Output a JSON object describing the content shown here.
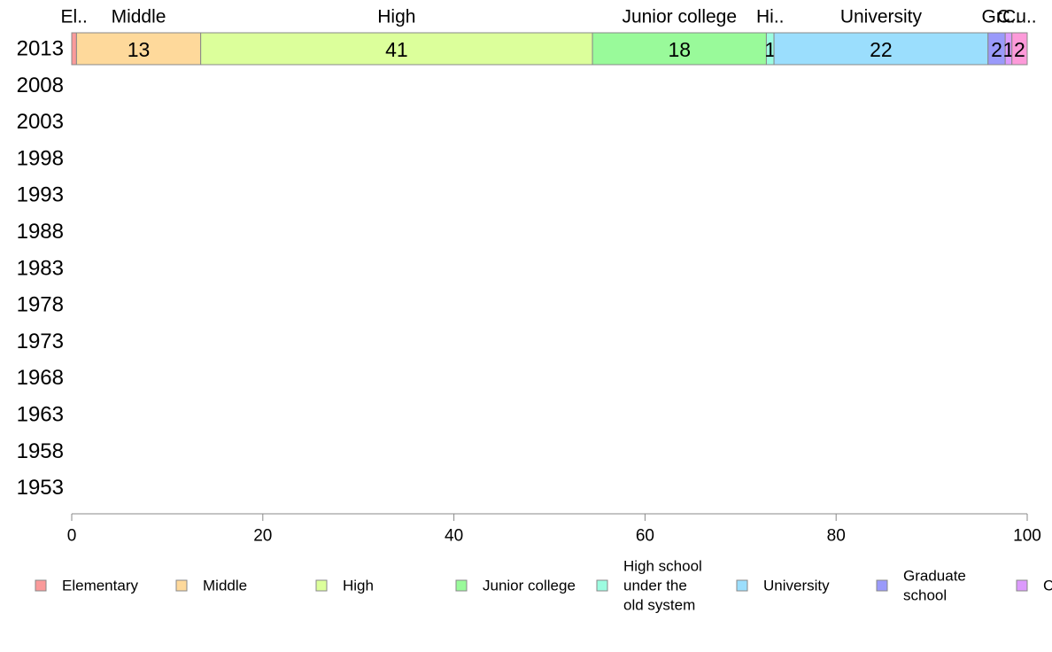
{
  "chart_data": {
    "type": "bar",
    "orientation": "horizontal",
    "stacked": true,
    "title": "",
    "xlabel": "",
    "ylabel": "",
    "xlim": [
      0,
      100
    ],
    "x_ticks": [
      "0",
      "20",
      "40",
      "60",
      "80",
      "100"
    ],
    "categories": [
      "2013",
      "2008",
      "2003",
      "1998",
      "1993",
      "1988",
      "1983",
      "1978",
      "1973",
      "1968",
      "1963",
      "1958",
      "1953"
    ],
    "series": [
      {
        "name": "Elementary",
        "top_label": "El..",
        "color": "#fa9a9a",
        "values": [
          0.5,
          null,
          null,
          null,
          null,
          null,
          null,
          null,
          null,
          null,
          null,
          null,
          null
        ],
        "label": ""
      },
      {
        "name": "Middle",
        "top_label": "Middle",
        "color": "#fed99b",
        "values": [
          13,
          null,
          null,
          null,
          null,
          null,
          null,
          null,
          null,
          null,
          null,
          null,
          null
        ],
        "label": "13"
      },
      {
        "name": "High",
        "top_label": "High",
        "color": "#dcff9b",
        "values": [
          41,
          null,
          null,
          null,
          null,
          null,
          null,
          null,
          null,
          null,
          null,
          null,
          null
        ],
        "label": "41"
      },
      {
        "name": "Junior college",
        "top_label": "Junior college",
        "color": "#99fa9a",
        "values": [
          18.2,
          null,
          null,
          null,
          null,
          null,
          null,
          null,
          null,
          null,
          null,
          null,
          null
        ],
        "label": "18"
      },
      {
        "name": "High school under the old system",
        "top_label": "Hi..",
        "color": "#9cfce0",
        "values": [
          0.8,
          null,
          null,
          null,
          null,
          null,
          null,
          null,
          null,
          null,
          null,
          null,
          null
        ],
        "label": "1"
      },
      {
        "name": "University",
        "top_label": "University",
        "color": "#9bdefd",
        "values": [
          22.4,
          null,
          null,
          null,
          null,
          null,
          null,
          null,
          null,
          null,
          null,
          null,
          null
        ],
        "label": "22"
      },
      {
        "name": "Graduate school",
        "top_label": "Gr..",
        "color": "#9a9afa",
        "values": [
          1.8,
          null,
          null,
          null,
          null,
          null,
          null,
          null,
          null,
          null,
          null,
          null,
          null
        ],
        "label": "2"
      },
      {
        "name": "C",
        "top_label": "C..",
        "color": "#dc9afd",
        "values": [
          0.7,
          null,
          null,
          null,
          null,
          null,
          null,
          null,
          null,
          null,
          null,
          null,
          null
        ],
        "label": "1"
      },
      {
        "name": "",
        "top_label": "Cu..",
        "color": "#fd9ad9",
        "values": [
          1.6,
          null,
          null,
          null,
          null,
          null,
          null,
          null,
          null,
          null,
          null,
          null,
          null
        ],
        "label": "2"
      }
    ],
    "legend": {
      "placement": "bottom",
      "items": [
        {
          "lines": [
            "Elementary"
          ],
          "color": "#fa9a9a"
        },
        {
          "lines": [
            "Middle"
          ],
          "color": "#fed99b"
        },
        {
          "lines": [
            "High"
          ],
          "color": "#dcff9b"
        },
        {
          "lines": [
            "Junior college"
          ],
          "color": "#99fa9a"
        },
        {
          "lines": [
            "High school",
            "under the",
            "old system"
          ],
          "color": "#9cfce0"
        },
        {
          "lines": [
            "University"
          ],
          "color": "#9bdefd"
        },
        {
          "lines": [
            "Graduate",
            "school"
          ],
          "color": "#9a9afa"
        },
        {
          "lines": [
            "C"
          ],
          "color": "#dc9afd"
        }
      ]
    },
    "grid": false
  }
}
